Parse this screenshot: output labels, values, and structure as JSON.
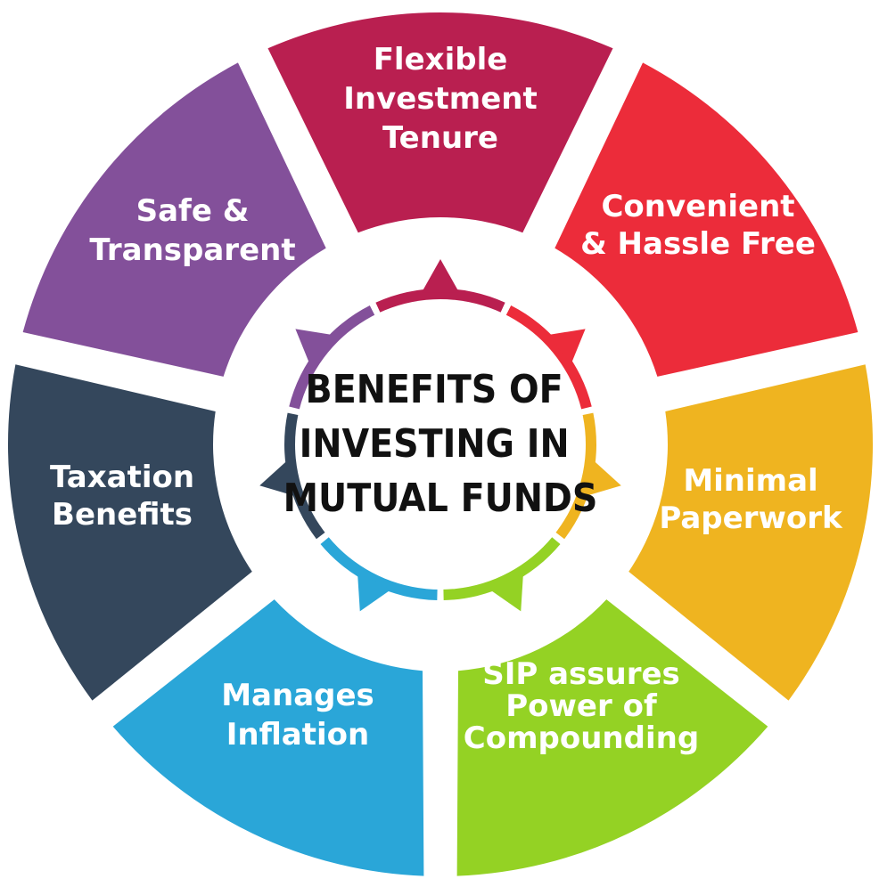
{
  "center": {
    "lines": [
      "BENEFITS OF",
      "INVESTING IN",
      "MUTUAL FUNDS"
    ]
  },
  "segments": [
    {
      "id": "flexible-investment-tenure",
      "lines": [
        "Flexible",
        "Investment",
        "Tenure"
      ],
      "color": "#B91F50"
    },
    {
      "id": "convenient-hassle-free",
      "lines": [
        "Convenient",
        "& Hassle Free"
      ],
      "color": "#EC2C3A"
    },
    {
      "id": "minimal-paperwork",
      "lines": [
        "Minimal",
        "Paperwork"
      ],
      "color": "#EFB420"
    },
    {
      "id": "sip-power-of-compounding",
      "lines": [
        "SIP assures",
        "Power of",
        "Compounding"
      ],
      "color": "#94D224"
    },
    {
      "id": "manages-inflation",
      "lines": [
        "Manages",
        "Inflation"
      ],
      "color": "#2AA6D8"
    },
    {
      "id": "taxation-benefits",
      "lines": [
        "Taxation",
        "Benefits"
      ],
      "color": "#34475C"
    },
    {
      "id": "safe-transparent",
      "lines": [
        "Safe &",
        "Transparent"
      ],
      "color": "#83509A"
    }
  ]
}
